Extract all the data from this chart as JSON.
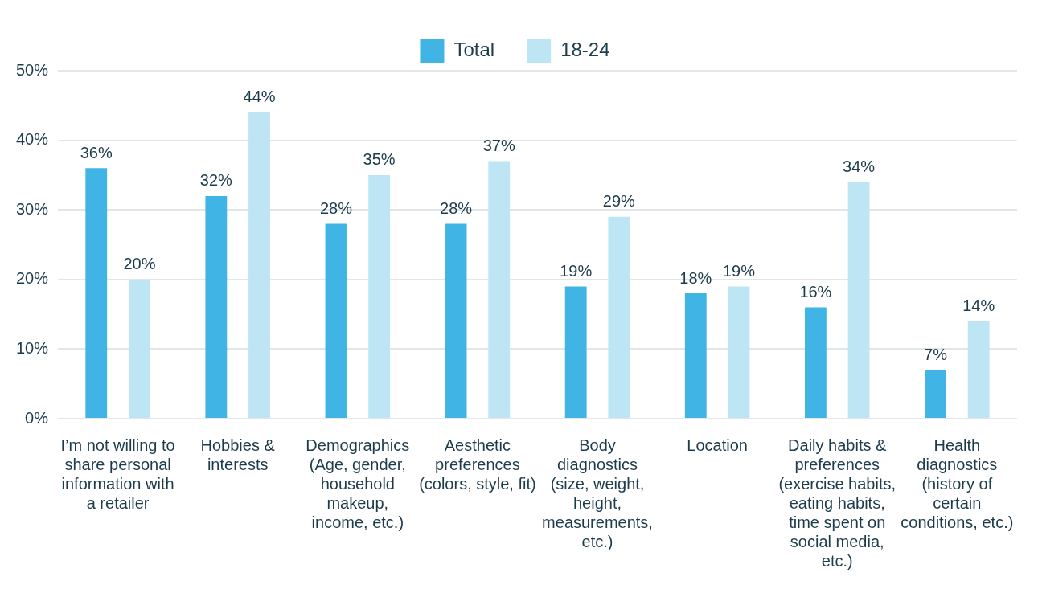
{
  "chart_data": {
    "type": "bar",
    "categories": [
      "I’m not willing to share personal information with a retailer",
      "Hobbies & interests",
      "Demographics (Age, gender, household makeup, income, etc.)",
      "Aesthetic preferences (colors, style, fit)",
      "Body diagnostics (size, weight, height, measurements, etc.)",
      "Location",
      "Daily habits & preferences (exercise habits, eating habits, time spent on social media, etc.)",
      "Health diagnostics (history of certain conditions, etc.)"
    ],
    "series": [
      {
        "name": "Total",
        "color": "#41b4e6",
        "values": [
          36,
          32,
          28,
          28,
          19,
          18,
          16,
          7
        ],
        "value_labels": [
          "36%",
          "32%",
          "28%",
          "28%",
          "19%",
          "18%",
          "16%",
          "7%"
        ]
      },
      {
        "name": "18-24",
        "color": "#bde5f3",
        "values": [
          20,
          44,
          35,
          37,
          29,
          19,
          34,
          14
        ],
        "value_labels": [
          "20%",
          "44%",
          "35%",
          "37%",
          "29%",
          "19%",
          "34%",
          "14%"
        ]
      }
    ],
    "ylim": [
      0,
      50
    ],
    "yticks": [
      {
        "value": 0,
        "label": "0%"
      },
      {
        "value": 10,
        "label": "10%"
      },
      {
        "value": 20,
        "label": "20%"
      },
      {
        "value": 30,
        "label": "30%"
      },
      {
        "value": 40,
        "label": "40%"
      },
      {
        "value": 50,
        "label": "50%"
      }
    ],
    "grid": "y",
    "legend": "top"
  }
}
